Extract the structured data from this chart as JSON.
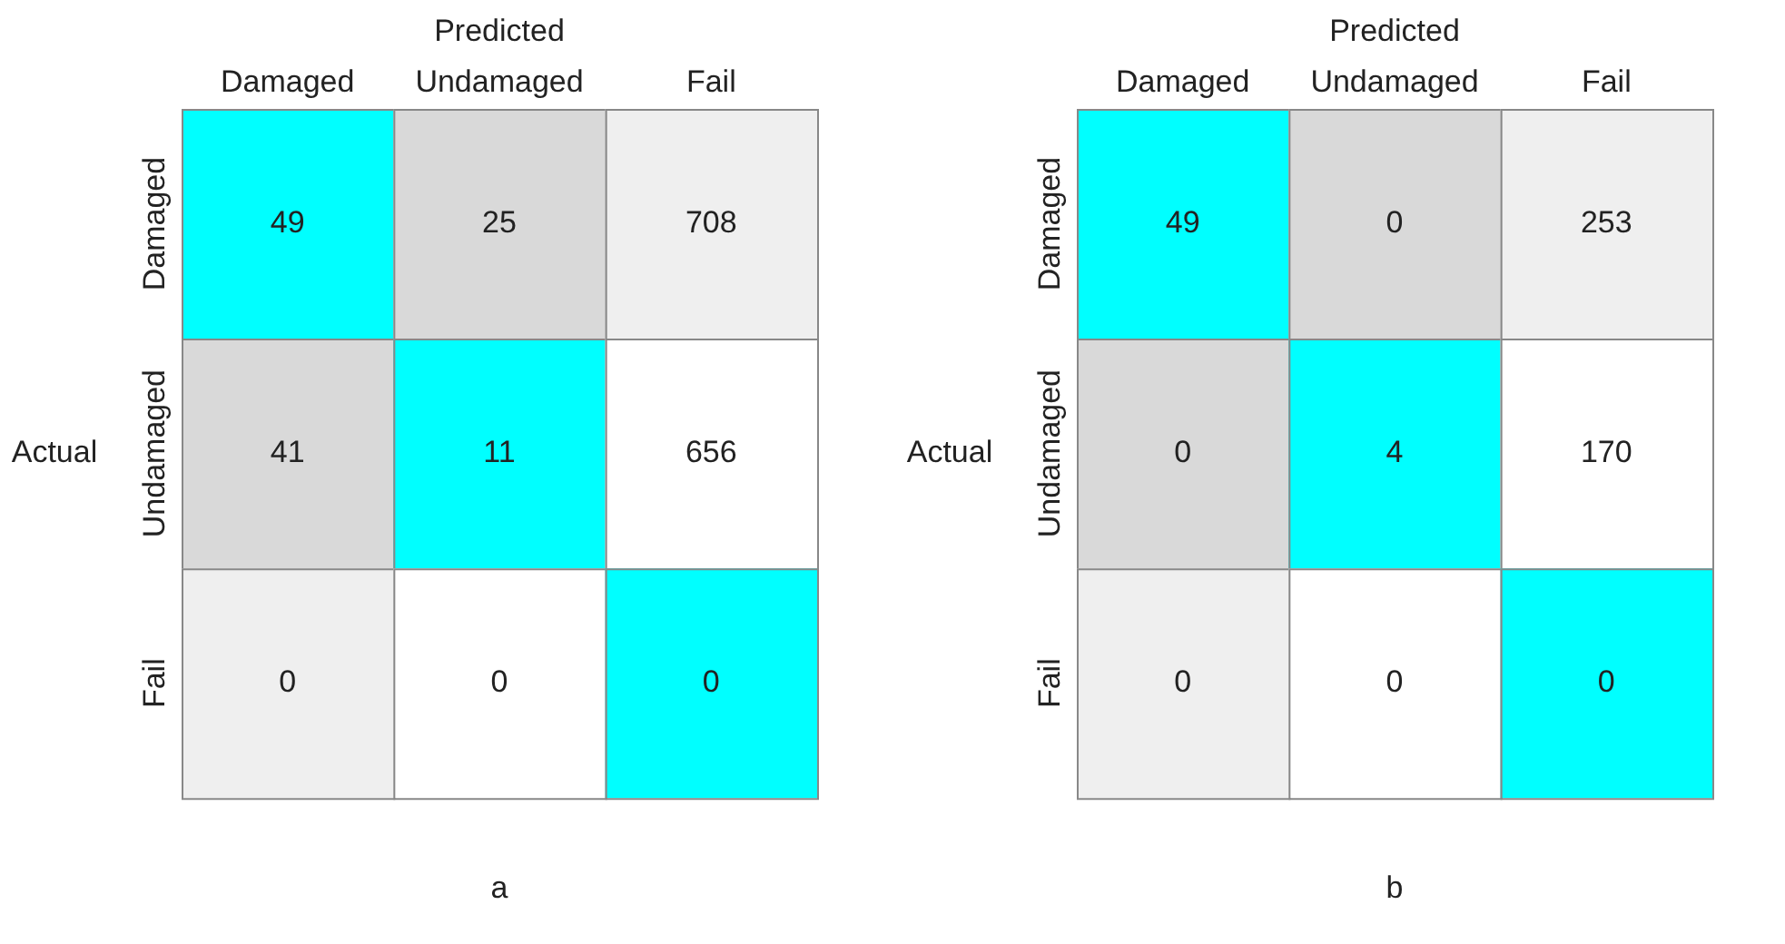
{
  "chart_data": [
    {
      "type": "heatmap",
      "data_labels": true,
      "title": "a",
      "xlabel": "Predicted",
      "ylabel": "Actual",
      "categories": [
        "Damaged",
        "Undamaged",
        "Fail"
      ],
      "y_categories": [
        "Damaged",
        "Undamaged",
        "Fail"
      ],
      "cells": [
        [
          49,
          25,
          708
        ],
        [
          41,
          11,
          656
        ],
        [
          0,
          0,
          0
        ]
      ],
      "colors": [
        [
          "#00ffff",
          "#d9d9d9",
          "#efefef"
        ],
        [
          "#d9d9d9",
          "#00ffff",
          "#ffffff"
        ],
        [
          "#efefef",
          "#ffffff",
          "#00ffff"
        ]
      ]
    },
    {
      "type": "heatmap",
      "data_labels": true,
      "title": "b",
      "xlabel": "Predicted",
      "ylabel": "Actual",
      "categories": [
        "Damaged",
        "Undamaged",
        "Fail"
      ],
      "y_categories": [
        "Damaged",
        "Undamaged",
        "Fail"
      ],
      "cells": [
        [
          49,
          0,
          253
        ],
        [
          0,
          4,
          170
        ],
        [
          0,
          0,
          0
        ]
      ],
      "colors": [
        [
          "#00ffff",
          "#d9d9d9",
          "#efefef"
        ],
        [
          "#d9d9d9",
          "#00ffff",
          "#ffffff"
        ],
        [
          "#efefef",
          "#ffffff",
          "#00ffff"
        ]
      ]
    }
  ]
}
